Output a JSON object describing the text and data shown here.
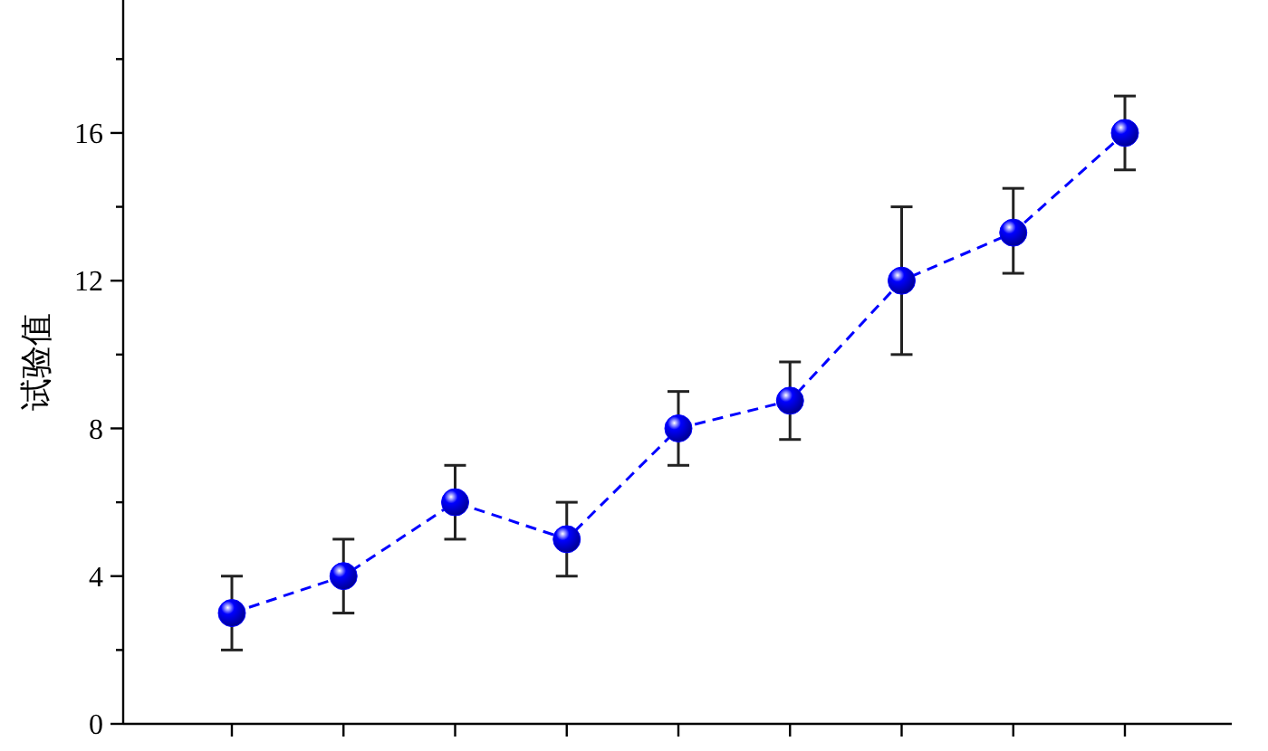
{
  "chart_data": {
    "type": "line",
    "ylabel": "试验值",
    "categories": [
      null,
      null,
      null,
      null,
      null,
      null,
      null,
      null,
      null
    ],
    "series": [
      {
        "color": "#0000ff",
        "values": [
          3,
          4,
          6,
          5,
          8,
          8.75,
          12,
          13.3,
          16
        ],
        "errors": [
          1,
          1,
          1,
          1,
          1,
          [
            7.7,
            9.8
          ],
          2,
          [
            12.2,
            14.5
          ],
          1
        ]
      }
    ],
    "ylim": [
      0,
      19.6
    ],
    "yticks": [
      0,
      {
        "value": 2,
        "label": null
      },
      4,
      {
        "value": 6,
        "label": null
      },
      8,
      {
        "value": 10,
        "label": null
      },
      12,
      {
        "value": 14,
        "label": null
      },
      16,
      {
        "value": 18,
        "label": null
      }
    ],
    "grid": false,
    "marker": "circle",
    "line_style": "dashed",
    "tick_labels": "y"
  }
}
